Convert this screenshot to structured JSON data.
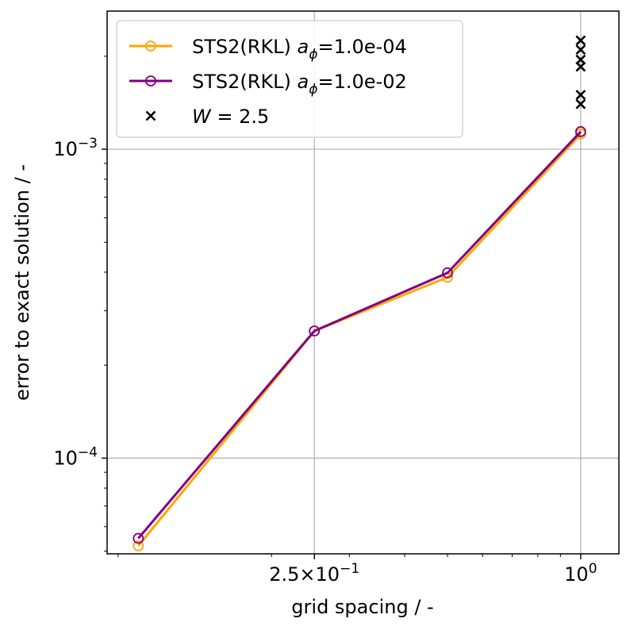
{
  "chart_data": {
    "type": "line",
    "xscale": "log",
    "yscale": "log",
    "xlabel": "grid spacing / -",
    "ylabel": "error to exact solution / -",
    "xlim": [
      0.085,
      1.22
    ],
    "ylim": [
      4.9e-05,
      0.0028
    ],
    "grid": true,
    "legend_position": "top-left",
    "x_ticks": [
      {
        "value": 0.25,
        "mantissa": "2.5",
        "exponent": "−1"
      },
      {
        "value": 1.0,
        "mantissa": "",
        "exponent": "0"
      }
    ],
    "y_ticks": [
      {
        "value": 0.0001,
        "exponent": "−4"
      },
      {
        "value": 0.001,
        "exponent": "−3"
      }
    ],
    "series": [
      {
        "name": "STS2(RKL) a_ϕ=1.0e-04",
        "label_main": "STS2(RKL) ",
        "label_var": "a",
        "label_sub": "ϕ",
        "label_value": "=1.0e-04",
        "color": "#FFA500",
        "marker": "open-circle",
        "x": [
          0.1,
          0.25,
          0.5,
          1.0
        ],
        "y": [
          5.2e-05,
          0.000258,
          0.000385,
          0.00112
        ]
      },
      {
        "name": "STS2(RKL) a_ϕ=1.0e-02",
        "label_main": "STS2(RKL) ",
        "label_var": "a",
        "label_sub": "ϕ",
        "label_value": "=1.0e-02",
        "color": "#800080",
        "marker": "open-circle",
        "x": [
          0.1,
          0.25,
          0.5,
          1.0
        ],
        "y": [
          5.5e-05,
          0.000258,
          0.000398,
          0.00114
        ]
      }
    ],
    "scatter": {
      "name": "W = 2.5",
      "label_var": "W",
      "label_value": " = 2.5",
      "color": "#000000",
      "marker": "x",
      "x": [
        1.0,
        1.0,
        1.0,
        1.0,
        1.0,
        1.0
      ],
      "y": [
        0.00225,
        0.0021,
        0.00195,
        0.00185,
        0.0015,
        0.0014
      ]
    }
  }
}
